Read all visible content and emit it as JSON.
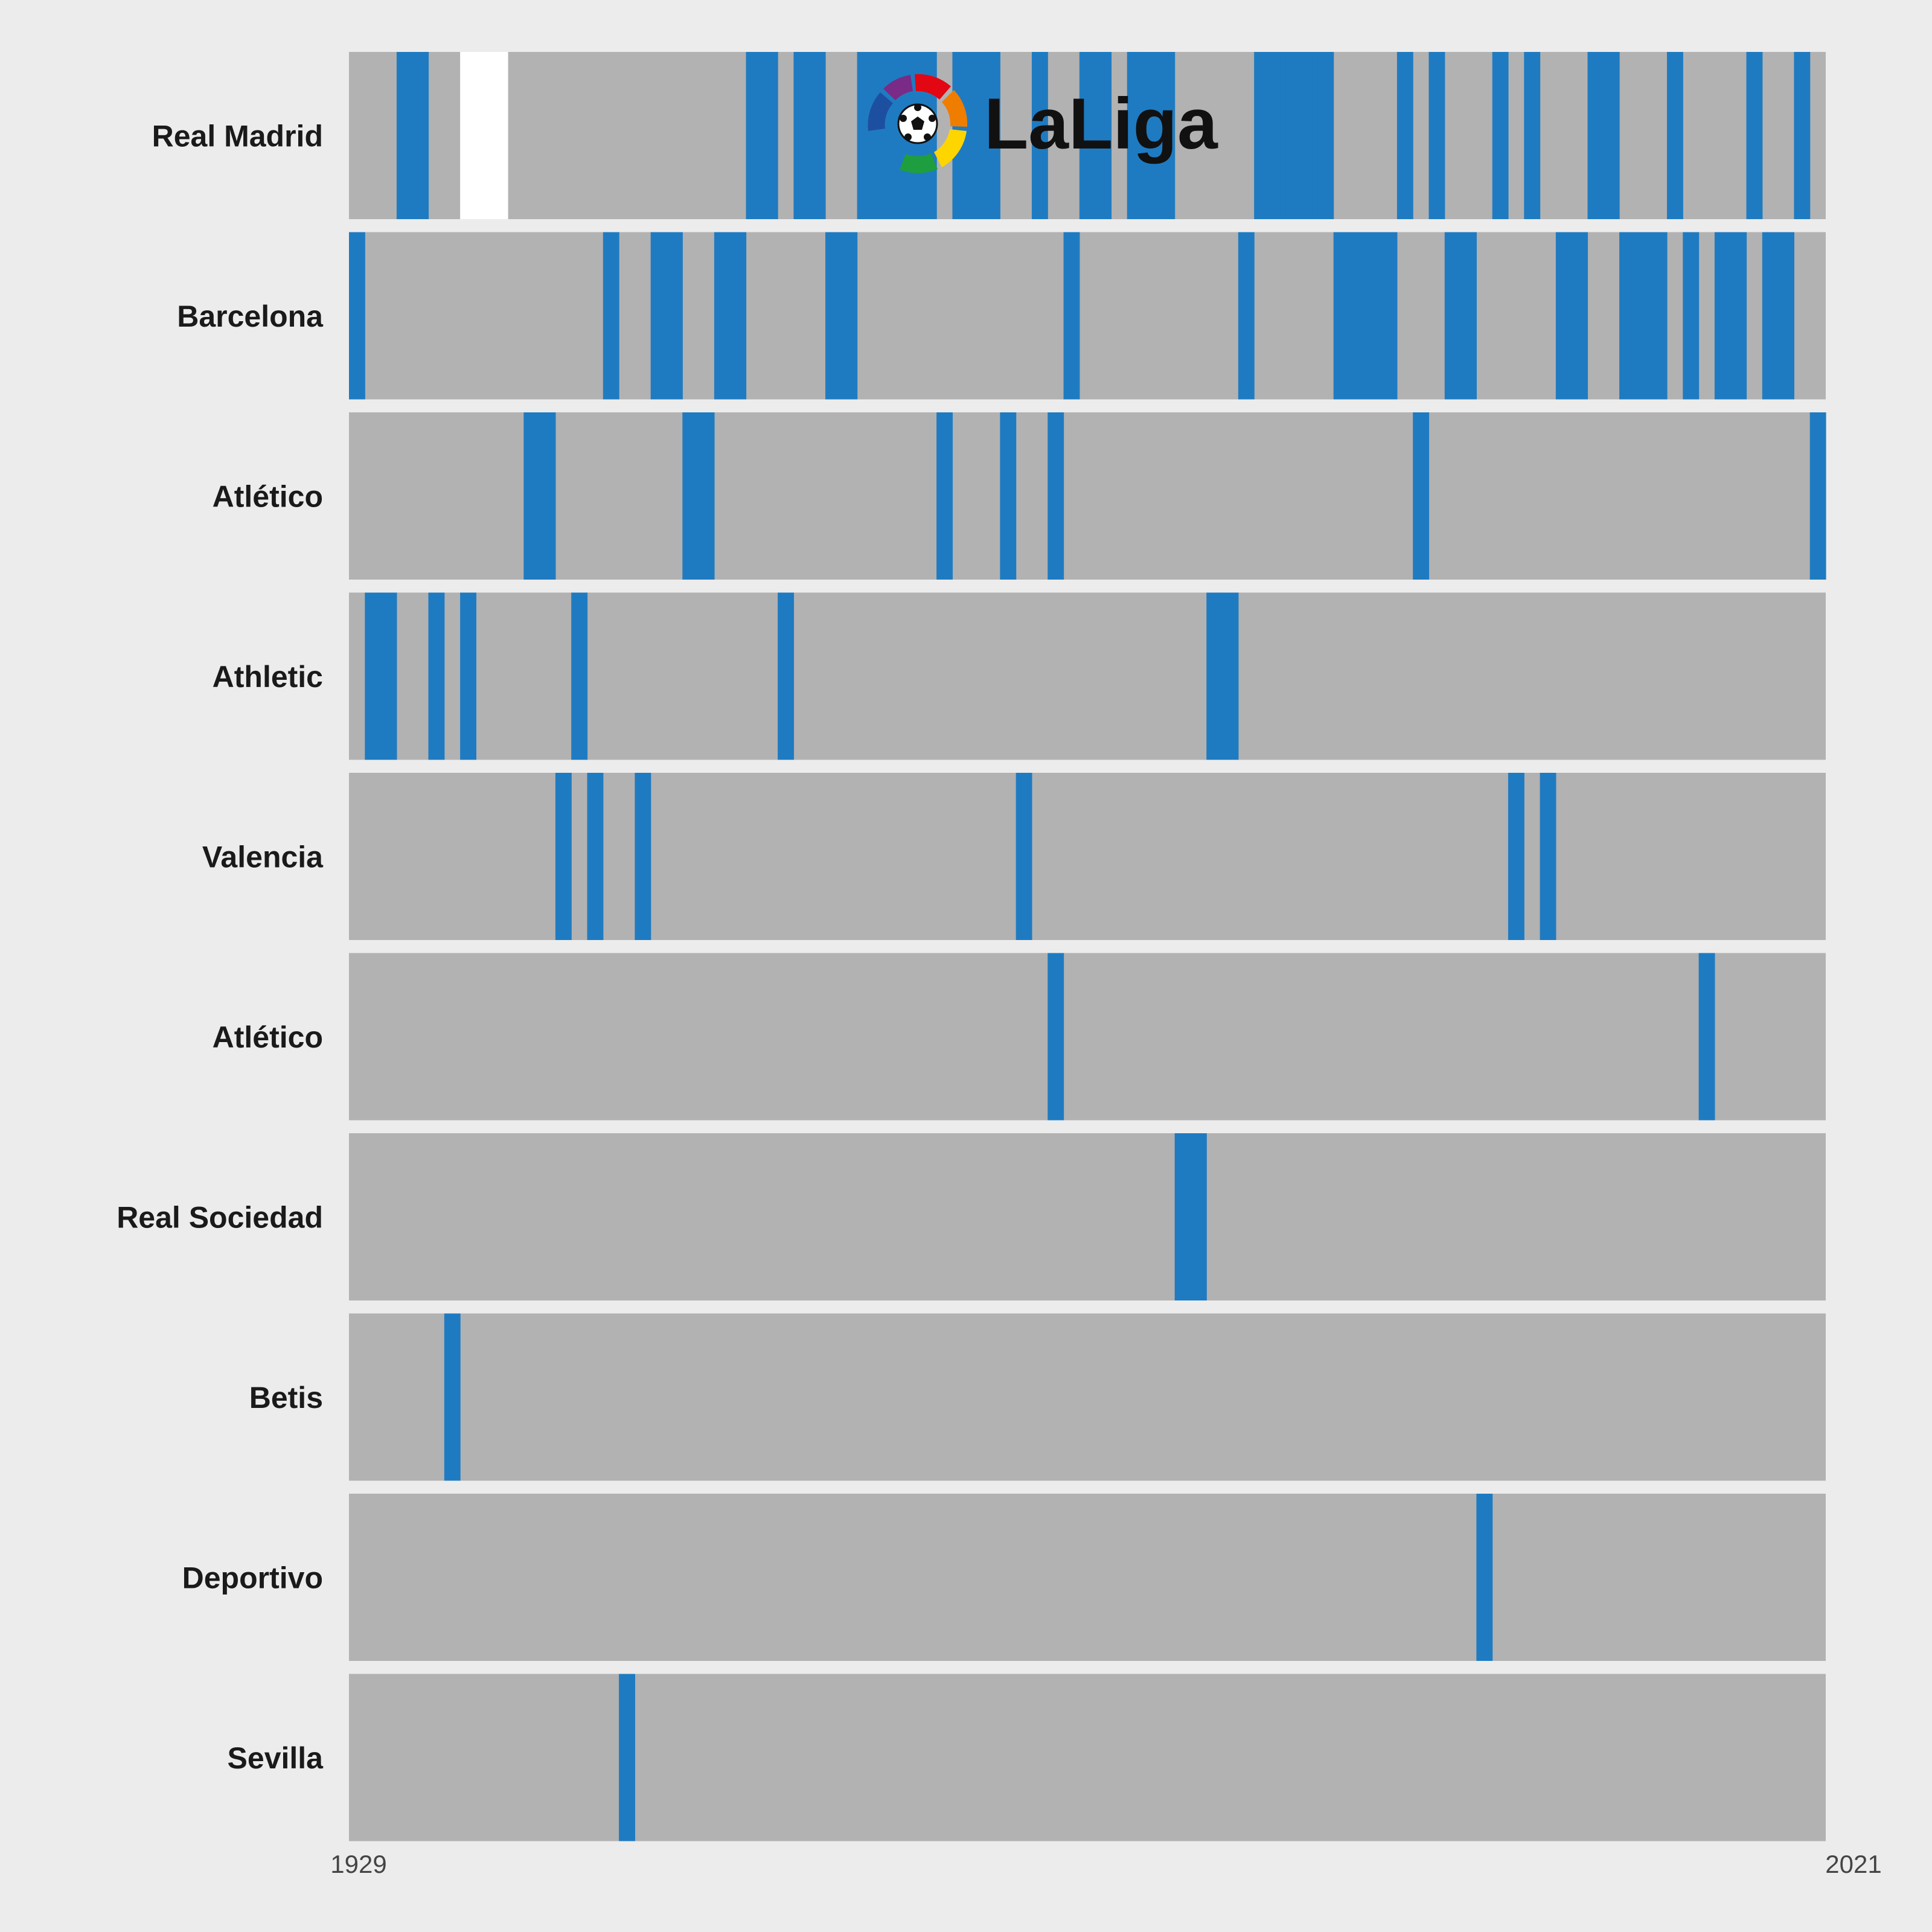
{
  "logo": {
    "text": "LaLiga"
  },
  "colors": {
    "background": "#ececec",
    "track": "#b2b2b2",
    "title_win": "#1f7bc1",
    "no_competition": "#ffffff",
    "label": "#1a1a1a"
  },
  "chart_data": {
    "type": "timeline",
    "x_range": [
      1929,
      2021
    ],
    "x_tick_labels": [
      "1929",
      "2021"
    ],
    "series": [
      {
        "name": "Real Madrid",
        "titles": [
          1932,
          1933,
          1954,
          1955,
          1957,
          1958,
          1961,
          1962,
          1963,
          1964,
          1965,
          1967,
          1968,
          1969,
          1972,
          1975,
          1976,
          1978,
          1979,
          1980,
          1986,
          1987,
          1988,
          1989,
          1990,
          1995,
          1997,
          2001,
          2003,
          2007,
          2008,
          2012,
          2017,
          2020
        ],
        "no_competition": [
          1936,
          1937,
          1938
        ]
      },
      {
        "name": "Barcelona",
        "titles": [
          1929,
          1945,
          1948,
          1949,
          1952,
          1953,
          1959,
          1960,
          1974,
          1985,
          1991,
          1992,
          1993,
          1994,
          1998,
          1999,
          2005,
          2006,
          2009,
          2010,
          2011,
          2013,
          2015,
          2016,
          2018,
          2019
        ]
      },
      {
        "name": "Atlético",
        "titles": [
          1940,
          1941,
          1950,
          1951,
          1966,
          1970,
          1973,
          1996,
          2021
        ]
      },
      {
        "name": "Athletic",
        "titles": [
          1930,
          1931,
          1934,
          1936,
          1943,
          1956,
          1983,
          1984
        ]
      },
      {
        "name": "Valencia",
        "titles": [
          1942,
          1944,
          1947,
          1971,
          2002,
          2004
        ]
      },
      {
        "name": "Atlético ",
        "titles": [
          1973,
          2014
        ]
      },
      {
        "name": "Real Sociedad",
        "titles": [
          1981,
          1982
        ]
      },
      {
        "name": "Betis",
        "titles": [
          1935
        ]
      },
      {
        "name": "Deportivo",
        "titles": [
          2000
        ]
      },
      {
        "name": "Sevilla",
        "titles": [
          1946
        ]
      }
    ]
  }
}
